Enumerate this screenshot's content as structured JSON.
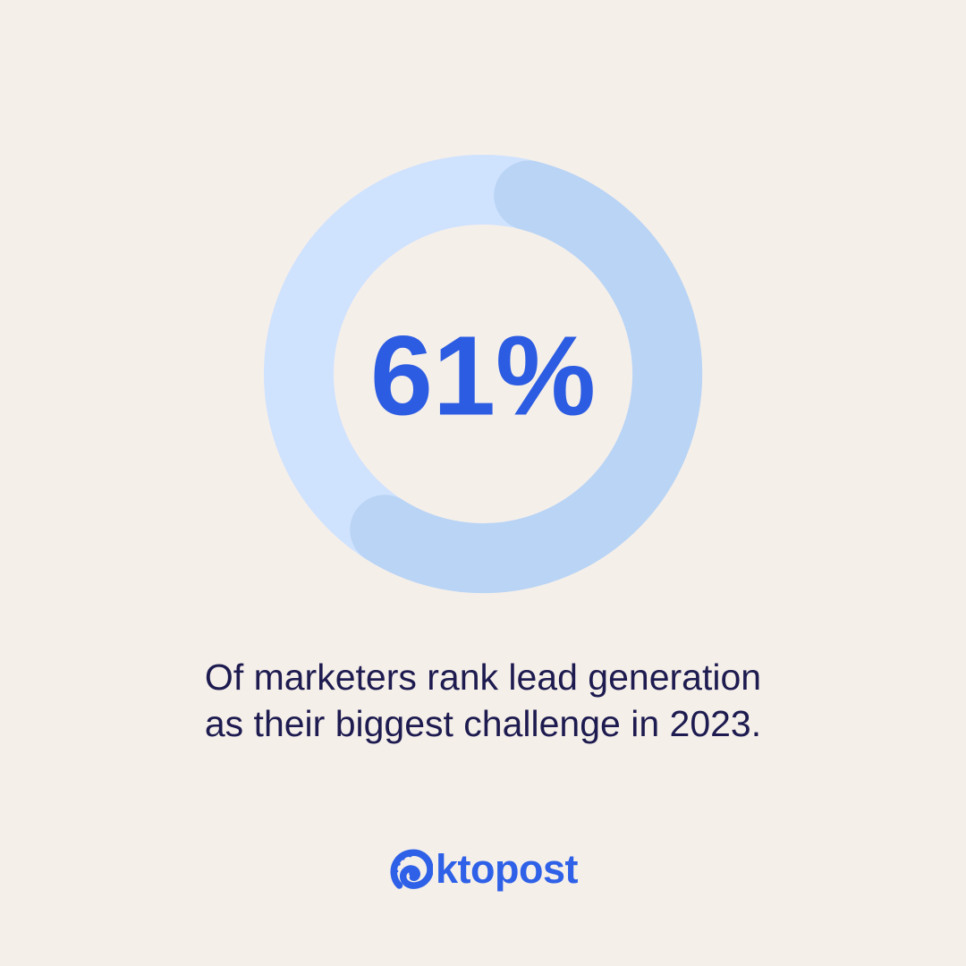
{
  "colors": {
    "background": "#f5efea",
    "donut_track": "#cfe2fe",
    "donut_arc": "#b9d4f4",
    "percent_text": "#2b5ce2",
    "caption_text": "#1d1b4f",
    "logo": "#2e61e7"
  },
  "chart_data": {
    "type": "donut",
    "value": 61,
    "max": 100,
    "center_label": "61%",
    "rotation_deg": 3.5,
    "track_color": "#cfe2fe",
    "arc_color": "#b9d4f4",
    "legend": "none",
    "grid": false
  },
  "stat": {
    "percent_label": "61%"
  },
  "caption": {
    "line1": "Of marketers rank lead generation",
    "line2": "as their biggest challenge in 2023."
  },
  "logo": {
    "brand": "Oktopost",
    "wordmark_text": "ktopost"
  }
}
